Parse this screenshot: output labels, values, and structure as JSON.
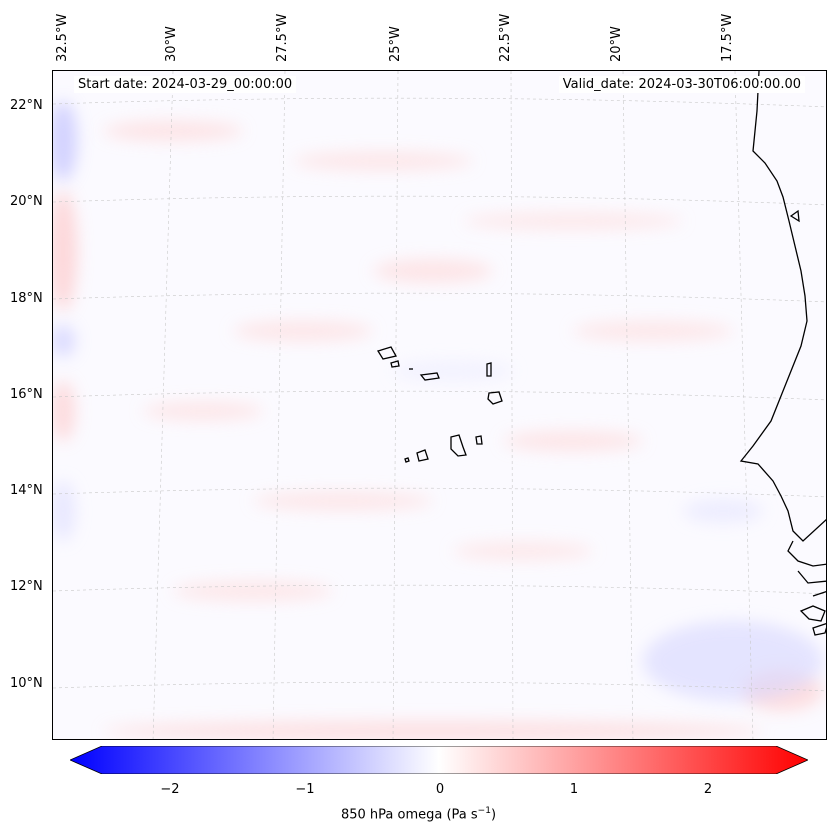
{
  "map": {
    "start_date": "Start date: 2024-03-29_00:00:00",
    "valid_date": "Valid_date: 2024-03-30T06:00:00.00",
    "longitude_labels": [
      "32.5°W",
      "30°W",
      "27.5°W",
      "25°W",
      "22.5°W",
      "20°W",
      "17.5°W"
    ],
    "latitude_labels": [
      "22°N",
      "20°N",
      "18°N",
      "16°N",
      "14°N",
      "12°N",
      "10°N"
    ],
    "region": "Cabo Verde and West African coast",
    "colors": {
      "negative": "#0000ff",
      "zero": "#ffffff",
      "positive": "#ff0000",
      "coastline": "#000000",
      "gridline": "#bbbbbb"
    }
  },
  "colorbar": {
    "ticks": [
      "−2",
      "−1",
      "0",
      "1",
      "2"
    ],
    "title": "850 hPa omega (Pa s",
    "title_sup": "−1",
    "title_end": ")",
    "range": [
      -2.6,
      2.6
    ],
    "extend": "both",
    "colormap": "bwr"
  }
}
